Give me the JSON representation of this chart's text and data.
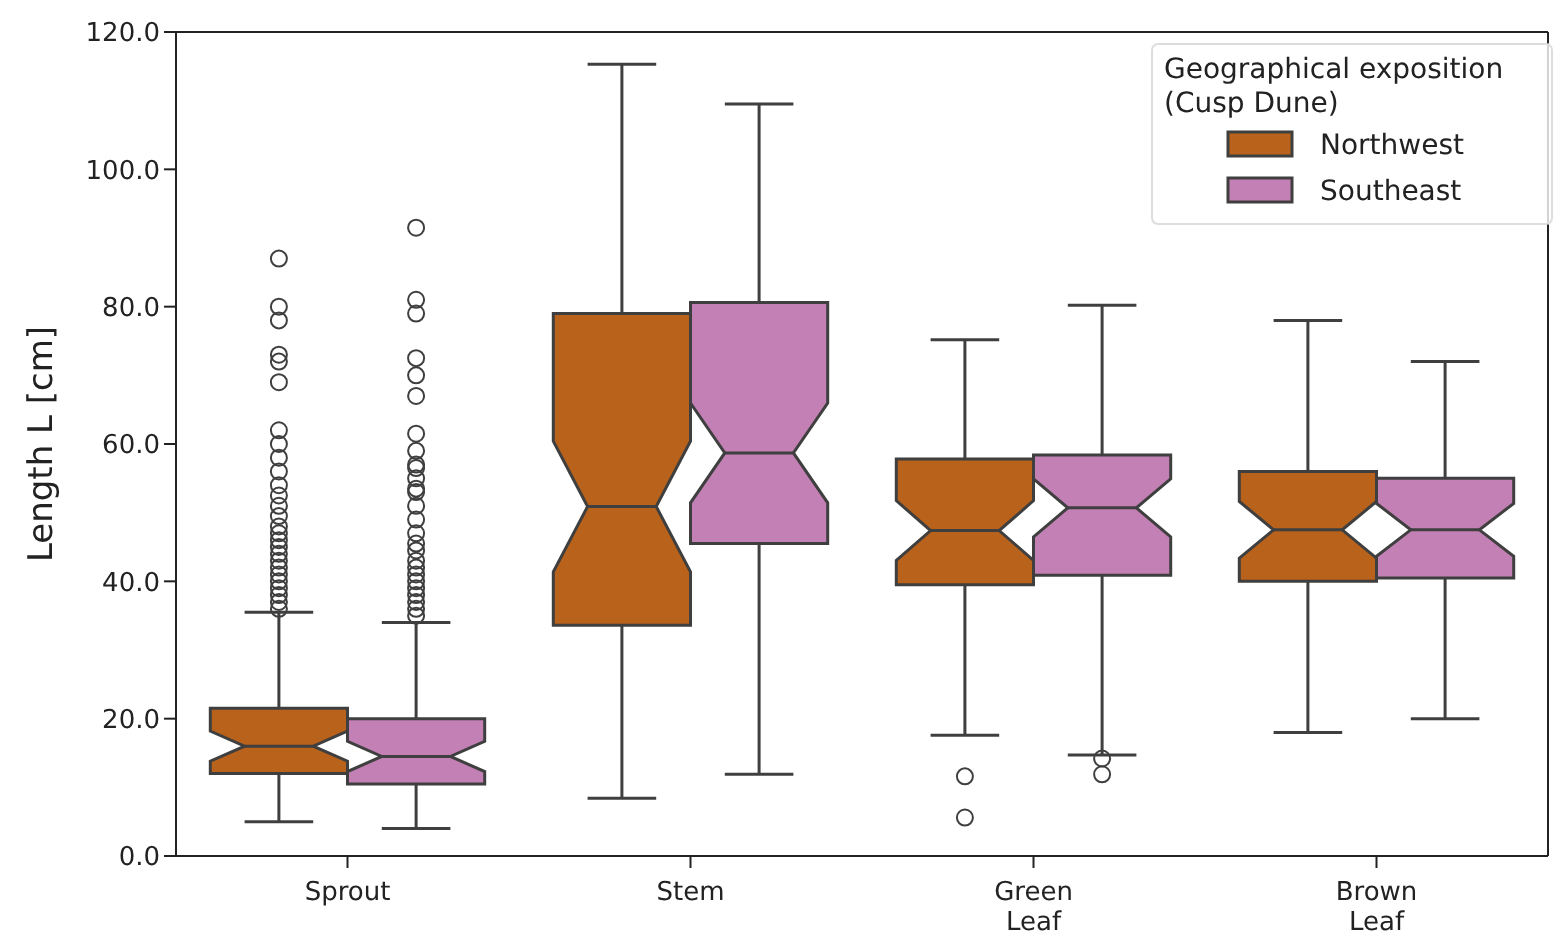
{
  "chart_data": {
    "type": "box",
    "categories": [
      "Sprout",
      "Stem",
      "Green\nLeaf",
      "Brown\nLeaf"
    ],
    "ylabel": "Length L [cm]",
    "legend_title": "Geographical exposition\n(Cusp Dune)",
    "legend": "top right",
    "ylim": [
      0,
      120
    ],
    "yticks": [
      {
        "value": 0,
        "label": "0.0"
      },
      {
        "value": 20,
        "label": "20.0"
      },
      {
        "value": 40,
        "label": "40.0"
      },
      {
        "value": 60,
        "label": "60.0"
      },
      {
        "value": 80,
        "label": "80.0"
      },
      {
        "value": 100,
        "label": "100.0"
      },
      {
        "value": 120,
        "label": "120.0"
      }
    ],
    "series": [
      {
        "name": "Northwest",
        "color": "#b8621b",
        "boxes": [
          {
            "low": 5,
            "q1": 12,
            "median": 16,
            "q3": 21.5,
            "high": 35.5,
            "outliers": [
              87,
              80,
              78,
              73,
              72,
              69,
              62,
              60,
              58,
              56,
              54,
              52.5,
              51,
              49.5,
              48,
              47,
              46,
              45,
              44,
              43,
              42,
              41,
              40,
              39,
              38,
              37,
              36
            ]
          },
          {
            "low": 8.4,
            "q1": 33.6,
            "median": 50.9,
            "q3": 79,
            "high": 115.3
          },
          {
            "low": 17.6,
            "q1": 39.5,
            "median": 47.4,
            "q3": 57.8,
            "high": 75.2,
            "outliers": [
              11.6,
              5.6
            ]
          },
          {
            "low": 18,
            "q1": 40,
            "median": 47.5,
            "q3": 56,
            "high": 78
          }
        ]
      },
      {
        "name": "Southeast",
        "color": "#c380b5",
        "boxes": [
          {
            "low": 4,
            "q1": 10.5,
            "median": 14.5,
            "q3": 20,
            "high": 34,
            "outliers": [
              91.5,
              81,
              79,
              72.5,
              70,
              67,
              61.5,
              59,
              57,
              56.5,
              55,
              53.5,
              53,
              51,
              49,
              47,
              45.5,
              44.5,
              43,
              42,
              41,
              40,
              39,
              38,
              37,
              36,
              35
            ]
          },
          {
            "low": 11.9,
            "q1": 45.5,
            "median": 58.7,
            "q3": 80.6,
            "high": 109.5
          },
          {
            "low": 14.7,
            "q1": 40.9,
            "median": 50.7,
            "q3": 58.4,
            "high": 80.2,
            "outliers": [
              14.2,
              11.9
            ]
          },
          {
            "low": 20,
            "q1": 40.5,
            "median": 47.5,
            "q3": 55,
            "high": 72
          }
        ]
      }
    ]
  }
}
